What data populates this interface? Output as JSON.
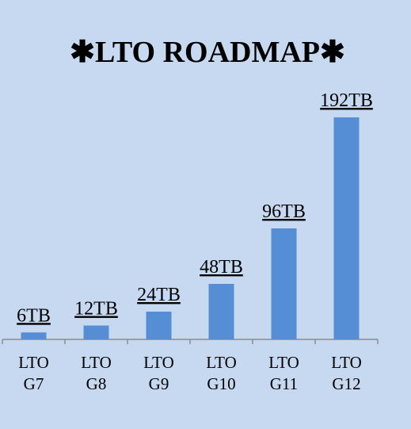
{
  "chart_data": {
    "type": "bar",
    "title": "✱LTO ROADMAP✱",
    "categories": [
      "LTO G7",
      "LTO G8",
      "LTO G9",
      "LTO G10",
      "LTO G11",
      "LTO G12"
    ],
    "values": [
      6,
      12,
      24,
      48,
      96,
      192
    ],
    "value_labels": [
      "6TB",
      "12TB",
      "24TB",
      "48TB",
      "96TB",
      "192TB"
    ],
    "color": "#558ed5"
  }
}
